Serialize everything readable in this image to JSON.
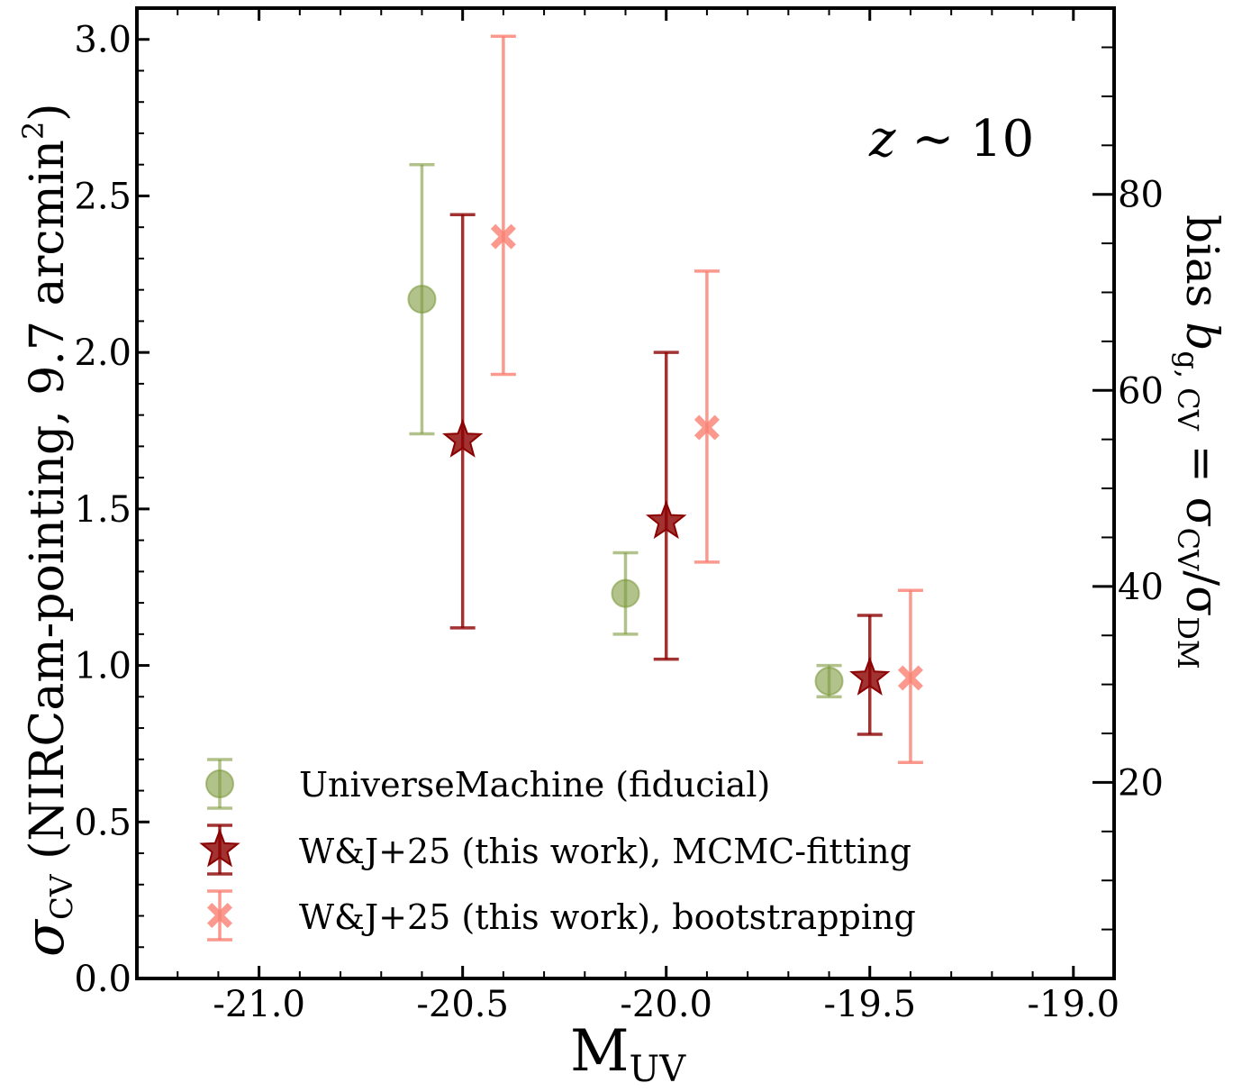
{
  "chart_data": {
    "type": "scatter",
    "xlabel": {
      "main": "M",
      "sub": "UV"
    },
    "ylabel": {
      "sigma": "σ",
      "sub": "CV",
      "rest": " (NIRCam-pointing, 9.7 arcmin",
      "sup": "2",
      "close": ")"
    },
    "y2label": {
      "prefix": "bias ",
      "b": "b",
      "sub": "g, CV",
      "eq": " = σ",
      "sub2": "CV",
      "slash": "/σ",
      "sub3": "DM"
    },
    "annotation": {
      "z": "z",
      "rest": " ∼ 10"
    },
    "xlim": [
      -21.3,
      -18.9
    ],
    "ylim": [
      0.0,
      3.1
    ],
    "y2lim": [
      0,
      99
    ],
    "xticks": [
      -21.0,
      -20.5,
      -20.0,
      -19.5,
      -19.0
    ],
    "xtick_labels": [
      "-21.0",
      "-20.5",
      "-20.0",
      "-19.5",
      "-19.0"
    ],
    "yticks": [
      0.0,
      0.5,
      1.0,
      1.5,
      2.0,
      2.5,
      3.0
    ],
    "ytick_labels": [
      "0.0",
      "0.5",
      "1.0",
      "1.5",
      "2.0",
      "2.5",
      "3.0"
    ],
    "y2ticks": [
      20,
      40,
      60,
      80
    ],
    "y2tick_labels": [
      "20",
      "40",
      "60",
      "80"
    ],
    "legend_position": "lower-left",
    "series": [
      {
        "name": "UniverseMachine (fiducial)",
        "marker": "circle",
        "color": "#7d9a3e",
        "x": [
          -20.6,
          -20.1,
          -19.6
        ],
        "y": [
          2.17,
          1.23,
          0.95
        ],
        "yerr_low": [
          1.74,
          1.1,
          0.9
        ],
        "yerr_high": [
          2.6,
          1.36,
          1.0
        ]
      },
      {
        "name": "W&J+25 (this work), MCMC-fitting",
        "marker": "star",
        "color": "#8b0000",
        "x": [
          -20.5,
          -20.0,
          -19.5
        ],
        "y": [
          1.72,
          1.46,
          0.96
        ],
        "yerr_low": [
          1.12,
          1.02,
          0.78
        ],
        "yerr_high": [
          2.44,
          2.0,
          1.16
        ]
      },
      {
        "name": "W&J+25 (this work), bootstrapping",
        "marker": "x",
        "color": "#fa8072",
        "x": [
          -20.4,
          -19.9,
          -19.4
        ],
        "y": [
          2.37,
          1.76,
          0.96
        ],
        "yerr_low": [
          1.93,
          1.33,
          0.69
        ],
        "yerr_high": [
          3.01,
          2.26,
          1.24
        ]
      }
    ]
  }
}
